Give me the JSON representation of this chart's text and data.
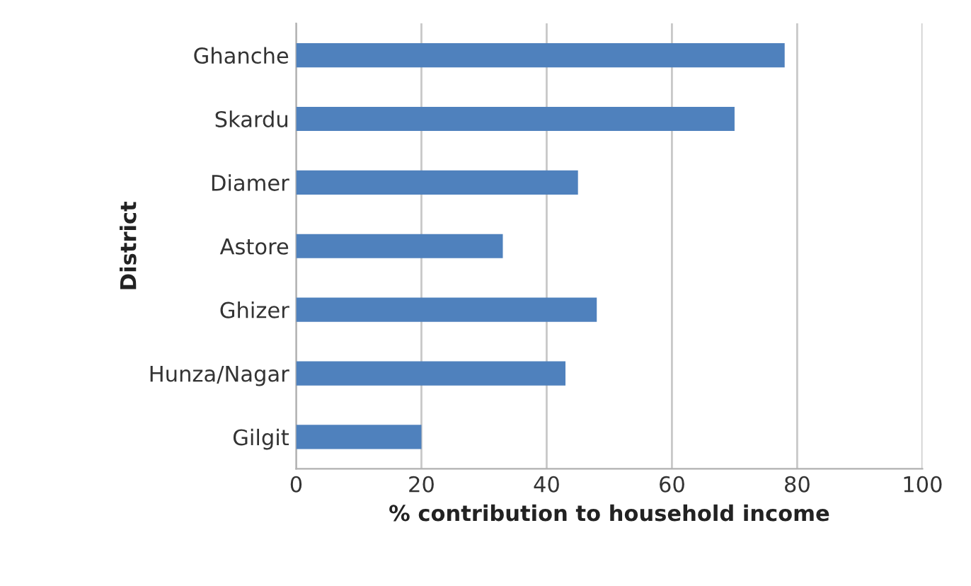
{
  "chart_data": {
    "type": "bar",
    "orientation": "horizontal",
    "xlabel": "% contribution to household income",
    "ylabel": "District",
    "categories": [
      "Ghanche",
      "Skardu",
      "Diamer",
      "Astore",
      "Ghizer",
      "Hunza/Nagar",
      "Gilgit"
    ],
    "values": [
      78,
      70,
      45,
      33,
      48,
      43,
      20
    ],
    "color": "#4f81bd",
    "xlim": [
      0,
      100
    ],
    "xticks": [
      0,
      20,
      40,
      60,
      80,
      100
    ],
    "grid": "x"
  }
}
